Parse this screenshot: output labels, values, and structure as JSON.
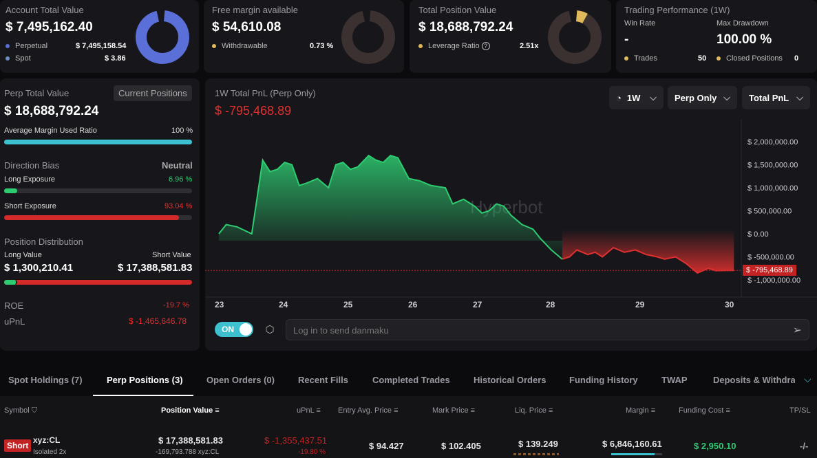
{
  "account": {
    "title": "Account Total Value",
    "value": "$ 7,495,162.40",
    "perpetual_label": "Perpetual",
    "perpetual_value": "$ 7,495,158.54",
    "spot_label": "Spot",
    "spot_value": "$ 3.86"
  },
  "free_margin": {
    "title": "Free margin available",
    "value": "$ 54,610.08",
    "withdrawable_label": "Withdrawable",
    "withdrawable_value": "0.73 %"
  },
  "total_position": {
    "title": "Total Position Value",
    "value": "$ 18,688,792.24",
    "leverage_label": "Leverage Ratio",
    "leverage_value": "2.51x"
  },
  "performance": {
    "title": "Trading Performance (1W)",
    "win_rate_label": "Win Rate",
    "win_rate_value": "-",
    "max_drawdown_label": "Max Drawdown",
    "max_drawdown_value": "100.00 %",
    "trades_label": "Trades",
    "trades_value": "50",
    "closed_label": "Closed Positions",
    "closed_value": "0"
  },
  "perp": {
    "title": "Perp Total Value",
    "current_positions_btn": "Current Positions",
    "value": "$ 18,688,792.24",
    "margin_ratio_label": "Average Margin Used Ratio",
    "margin_ratio_value": "100 %",
    "margin_ratio_fraction": 1.0,
    "direction_bias_label": "Direction Bias",
    "direction_bias_value": "Neutral",
    "long_exposure_label": "Long Exposure",
    "long_exposure_value": "6.96 %",
    "long_fraction": 0.0696,
    "short_exposure_label": "Short Exposure",
    "short_exposure_value": "93.04 %",
    "short_fraction": 0.9304,
    "distribution_label": "Position Distribution",
    "long_value_label": "Long Value",
    "long_value": "$ 1,300,210.41",
    "short_value_label": "Short Value",
    "short_value": "$ 17,388,581.83",
    "dist_long_fraction": 0.0696,
    "roe_label": "ROE",
    "roe_value": "-19.7 %",
    "upnl_label": "uPnL",
    "upnl_value": "$ -1,465,646.78"
  },
  "pnl_chart": {
    "title": "1W Total PnL (Perp Only)",
    "current": "$ -795,468.89",
    "period": "1W",
    "scope": "Perp Only",
    "metric": "Total PnL",
    "watermark": "Hyperbot",
    "current_tag": "$ -795,468.89"
  },
  "danmaku": {
    "toggle": "ON",
    "placeholder": "Log in to send danmaku"
  },
  "tabs": [
    "Spot Holdings (7)",
    "Perp Positions (3)",
    "Open Orders (0)",
    "Recent Fills",
    "Completed Trades",
    "Historical Orders",
    "Funding History",
    "TWAP",
    "Deposits & Withdraw"
  ],
  "table": {
    "headers": {
      "symbol": "Symbol",
      "position_value": "Position Value",
      "upnl": "uPnL",
      "entry": "Entry Avg. Price",
      "mark": "Mark Price",
      "liq": "Liq. Price",
      "margin": "Margin",
      "funding": "Funding Cost",
      "tpsl": "TP/SL"
    },
    "row": {
      "side": "Short",
      "symbol": "xyz:CL",
      "mode": "Isolated 2x",
      "position_value": "$ 17,388,581.83",
      "position_size": "-169,793.788 xyz:CL",
      "upnl": "$ -1,355,437.51",
      "upnl_pct": "-19.80 %",
      "entry": "$ 94.427",
      "mark": "$ 102.405",
      "liq": "$ 139.249",
      "margin": "$ 6,846,160.61",
      "funding": "$ 2,950.10",
      "tpsl": "-/-"
    }
  },
  "colors": {
    "green": "#2ecc71",
    "red": "#e0302f",
    "blue": "#5a6fd8",
    "teal": "#3ec1cf",
    "gold": "#e0b95a"
  },
  "chart_data": {
    "type": "area",
    "title": "1W Total PnL (Perp Only)",
    "x_ticks": [
      "23",
      "24",
      "25",
      "26",
      "27",
      "28",
      "29",
      "30"
    ],
    "y_ticks": [
      "$ 2,000,000.00",
      "$ 1,500,000.00",
      "$ 1,000,000.00",
      "$ 500,000.00",
      "$ 0.00",
      "$ -500,000.00",
      "$ -1,000,000.00"
    ],
    "ylim": [
      -1000000,
      2000000
    ],
    "x": [
      23.0,
      23.1,
      23.25,
      23.45,
      23.6,
      23.7,
      23.8,
      23.9,
      24.0,
      24.1,
      24.2,
      24.35,
      24.5,
      24.6,
      24.7,
      24.8,
      24.9,
      25.05,
      25.15,
      25.25,
      25.35,
      25.45,
      25.5,
      25.6,
      25.75,
      25.9,
      26.1,
      26.2,
      26.35,
      26.5,
      26.6,
      26.7,
      26.8,
      26.9,
      27.0,
      27.15,
      27.3,
      27.4,
      27.55,
      27.7,
      27.8,
      27.9,
      28.05,
      28.15,
      28.25,
      28.4,
      28.55,
      28.7,
      28.85,
      29.0,
      29.1,
      29.25,
      29.4,
      29.55,
      29.7,
      29.8,
      29.95,
      30.05
    ],
    "y": [
      0,
      200000,
      150000,
      0,
      1600000,
      1350000,
      1400000,
      1550000,
      1500000,
      1050000,
      1100000,
      1200000,
      1000000,
      1500000,
      1550000,
      1400000,
      1450000,
      1700000,
      1600000,
      1550000,
      1700000,
      1650000,
      1500000,
      1200000,
      1150000,
      1050000,
      1000000,
      650000,
      750000,
      600000,
      450000,
      500000,
      650000,
      600000,
      400000,
      200000,
      100000,
      -100000,
      -350000,
      -550000,
      -500000,
      -350000,
      -450000,
      -400000,
      -500000,
      -300000,
      -400000,
      -350000,
      -450000,
      -500000,
      -550000,
      -500000,
      -650000,
      -850000,
      -750000,
      -800000,
      -795000,
      -795000
    ],
    "current_value": -795468.89
  }
}
